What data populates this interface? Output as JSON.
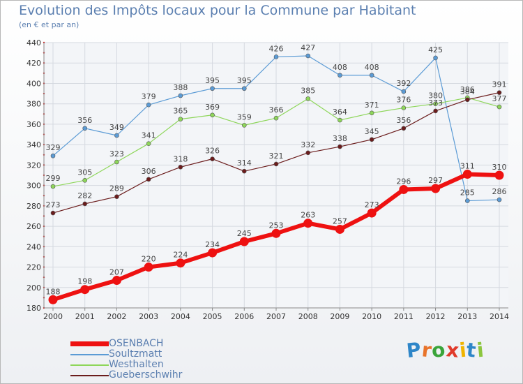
{
  "title": "Evolution des Impôts locaux pour la Commune par Habitant",
  "subtitle": "(en € et par an)",
  "logo": {
    "letters": [
      {
        "ch": "P",
        "color": "#2e86c8"
      },
      {
        "ch": "r",
        "color": "#e8732a"
      },
      {
        "ch": "o",
        "color": "#3aa43a"
      },
      {
        "ch": "x",
        "color": "#e03a2a"
      },
      {
        "ch": "i",
        "color": "#f0b400"
      },
      {
        "ch": "t",
        "color": "#2e86c8"
      },
      {
        "ch": "i",
        "color": "#8cc63f"
      }
    ]
  },
  "chart_data": {
    "type": "line",
    "title": "Evolution des Impôts locaux pour la Commune par Habitant",
    "subtitle": "(en € et par an)",
    "x": [
      "2000",
      "2001",
      "2002",
      "2003",
      "2004",
      "2005",
      "2006",
      "2007",
      "2008",
      "2009",
      "2010",
      "2011",
      "2012",
      "2013",
      "2014"
    ],
    "ylim": [
      180,
      440
    ],
    "yticks": [
      180,
      200,
      220,
      240,
      260,
      280,
      300,
      320,
      340,
      360,
      380,
      400,
      420,
      440
    ],
    "grid": true,
    "legend_position": "bottom-left",
    "series": [
      {
        "name": "OSENBACH",
        "color": "#ee1111",
        "emphasis": true,
        "values": [
          188,
          198,
          207,
          220,
          224,
          234,
          245,
          253,
          263,
          257,
          273,
          296,
          297,
          311,
          310
        ]
      },
      {
        "name": "Soultzmatt",
        "color": "#5b9bd5",
        "values": [
          329,
          356,
          349,
          379,
          388,
          395,
          395,
          426,
          427,
          408,
          408,
          392,
          425,
          285,
          286
        ]
      },
      {
        "name": "Westhalten",
        "color": "#8ed65a",
        "values": [
          299,
          305,
          323,
          341,
          365,
          369,
          359,
          366,
          385,
          364,
          371,
          376,
          380,
          386,
          377
        ]
      },
      {
        "name": "Gueberschwihr",
        "color": "#6b1c1c",
        "values": [
          273,
          282,
          289,
          306,
          318,
          326,
          314,
          321,
          332,
          338,
          345,
          356,
          373,
          384,
          391
        ]
      }
    ]
  }
}
